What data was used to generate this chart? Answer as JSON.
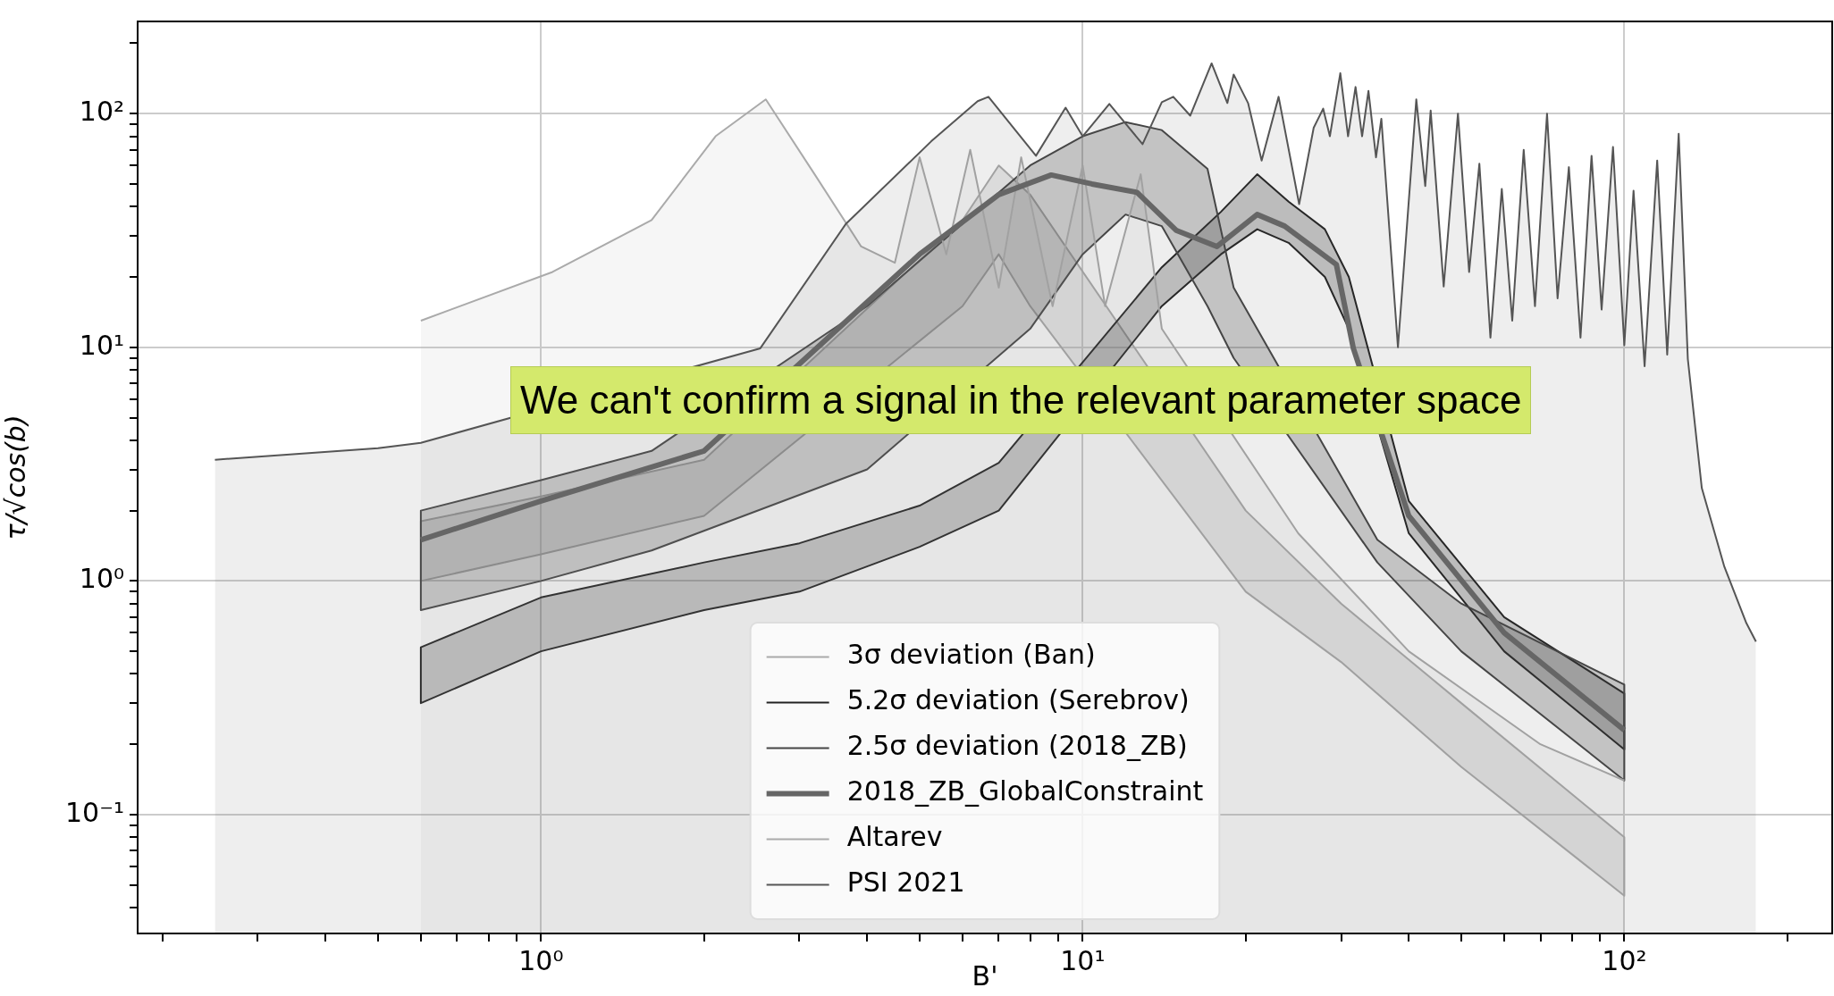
{
  "chart_data": {
    "type": "line",
    "xlabel": "B'",
    "ylabel": "τ/√cos(b)",
    "log": "xy",
    "grid": true,
    "legend": "bottom",
    "xlim": [
      0.18,
      242
    ],
    "ylim": [
      0.031,
      248
    ],
    "xticks": [
      {
        "value": 0.2,
        "label": null
      },
      {
        "value": 0.3,
        "label": null
      },
      {
        "value": 0.4,
        "label": null
      },
      {
        "value": 0.5,
        "label": null
      },
      {
        "value": 0.6,
        "label": null
      },
      {
        "value": 0.7,
        "label": null
      },
      {
        "value": 0.8,
        "label": null
      },
      {
        "value": 0.9,
        "label": null
      },
      {
        "value": 1,
        "label": "10⁰"
      },
      {
        "value": 2,
        "label": null
      },
      {
        "value": 3,
        "label": null
      },
      {
        "value": 4,
        "label": null
      },
      {
        "value": 5,
        "label": null
      },
      {
        "value": 6,
        "label": null
      },
      {
        "value": 7,
        "label": null
      },
      {
        "value": 8,
        "label": null
      },
      {
        "value": 9,
        "label": null
      },
      {
        "value": 10,
        "label": "10¹"
      },
      {
        "value": 20,
        "label": null
      },
      {
        "value": 30,
        "label": null
      },
      {
        "value": 40,
        "label": null
      },
      {
        "value": 50,
        "label": null
      },
      {
        "value": 60,
        "label": null
      },
      {
        "value": 70,
        "label": null
      },
      {
        "value": 80,
        "label": null
      },
      {
        "value": 90,
        "label": null
      },
      {
        "value": 100,
        "label": "10²"
      },
      {
        "value": 200,
        "label": null
      }
    ],
    "yticks": [
      {
        "value": 0.04,
        "label": null
      },
      {
        "value": 0.05,
        "label": null
      },
      {
        "value": 0.06,
        "label": null
      },
      {
        "value": 0.07,
        "label": null
      },
      {
        "value": 0.08,
        "label": null
      },
      {
        "value": 0.09,
        "label": null
      },
      {
        "value": 0.1,
        "label": "10⁻¹"
      },
      {
        "value": 0.2,
        "label": null
      },
      {
        "value": 0.3,
        "label": null
      },
      {
        "value": 0.4,
        "label": null
      },
      {
        "value": 0.5,
        "label": null
      },
      {
        "value": 0.6,
        "label": null
      },
      {
        "value": 0.7,
        "label": null
      },
      {
        "value": 0.8,
        "label": null
      },
      {
        "value": 0.9,
        "label": null
      },
      {
        "value": 1,
        "label": "10⁰"
      },
      {
        "value": 2,
        "label": null
      },
      {
        "value": 3,
        "label": null
      },
      {
        "value": 4,
        "label": null
      },
      {
        "value": 5,
        "label": null
      },
      {
        "value": 6,
        "label": null
      },
      {
        "value": 7,
        "label": null
      },
      {
        "value": 8,
        "label": null
      },
      {
        "value": 9,
        "label": null
      },
      {
        "value": 10,
        "label": "10¹"
      },
      {
        "value": 20,
        "label": null
      },
      {
        "value": 30,
        "label": null
      },
      {
        "value": 40,
        "label": null
      },
      {
        "value": 50,
        "label": null
      },
      {
        "value": 60,
        "label": null
      },
      {
        "value": 70,
        "label": null
      },
      {
        "value": 80,
        "label": null
      },
      {
        "value": 90,
        "label": null
      },
      {
        "value": 100,
        "label": "10²"
      },
      {
        "value": 200,
        "label": null
      }
    ],
    "series": [
      {
        "name": "3σ deviation (Ban)",
        "color": "#aaaaaa",
        "x": [
          0.6,
          1,
          2,
          3,
          4,
          5,
          6,
          7,
          8,
          10,
          14,
          20,
          30,
          50,
          100
        ],
        "values": [
          null,
          null,
          null,
          null,
          null,
          null,
          null,
          null,
          null,
          null,
          null,
          null,
          null,
          null,
          null
        ],
        "lower": [
          1.0,
          1.3,
          1.9,
          null,
          null,
          null,
          15,
          25,
          15,
          null,
          null,
          0.9,
          0.45,
          0.16,
          0.045
        ],
        "upper": [
          1.8,
          2.3,
          3.3,
          null,
          null,
          null,
          35,
          60,
          45,
          null,
          null,
          2,
          0.8,
          0.3,
          0.08
        ]
      },
      {
        "name": "5.2σ deviation (Serebrov)",
        "color": "#222222",
        "x": [
          0.6,
          1,
          2,
          3,
          5,
          7,
          9,
          11,
          14,
          18,
          21,
          24,
          28,
          31,
          33,
          40,
          60,
          100
        ],
        "values": [
          null,
          null,
          null,
          null,
          null,
          null,
          null,
          null,
          null,
          null,
          null,
          null,
          null,
          null,
          null,
          null,
          null,
          null
        ],
        "lower": [
          0.3,
          0.5,
          0.75,
          0.9,
          1.4,
          2,
          null,
          null,
          15,
          25,
          32,
          28,
          20,
          12,
          null,
          1.6,
          0.5,
          0.19
        ],
        "upper": [
          0.52,
          0.85,
          1.2,
          1.45,
          2.1,
          3.2,
          null,
          null,
          22,
          38,
          55,
          42,
          32,
          20,
          null,
          2.2,
          0.7,
          0.33
        ]
      },
      {
        "name": "2.5σ deviation (2018_ZB)",
        "color": "#444444",
        "x": [
          0.6,
          1,
          1.6,
          2.5,
          4,
          6,
          8,
          10,
          12,
          14,
          17,
          19,
          21,
          25,
          35,
          50,
          100
        ],
        "values": [
          null,
          null,
          null,
          null,
          null,
          null,
          null,
          null,
          null,
          null,
          null,
          null,
          null,
          null,
          null,
          null,
          null
        ],
        "lower": [
          0.75,
          1.0,
          1.35,
          null,
          3,
          null,
          12,
          25,
          37,
          33,
          15,
          9,
          null,
          null,
          1.2,
          0.5,
          0.14
        ],
        "upper": [
          2.0,
          2.7,
          3.6,
          null,
          15,
          null,
          60,
          80,
          92,
          85,
          58,
          18,
          null,
          null,
          1.5,
          0.8,
          0.36
        ]
      },
      {
        "name": "2018_ZB_GlobalConstraint",
        "color": "#666666",
        "x": [
          0.6,
          1,
          2,
          3,
          5,
          7,
          8.75,
          10.4,
          12.6,
          14.9,
          17.7,
          21,
          23.6,
          29.4,
          31.6,
          32.8,
          40,
          60,
          100
        ],
        "values": [
          1.5,
          2.2,
          3.6,
          null,
          25,
          45,
          54.6,
          50,
          46,
          31.6,
          27,
          37,
          33,
          22.6,
          9.9,
          null,
          1.9,
          0.6,
          0.23
        ]
      },
      {
        "name": "Altarev",
        "type": "area",
        "color": "#aaaaaa",
        "x": [
          0.6,
          1.05,
          1.6,
          2.1,
          2.6,
          3.2,
          3.9,
          4.5,
          5,
          5.6,
          6.2,
          7,
          7.7,
          8.8,
          10,
          11,
          12.8,
          14,
          17,
          25,
          40,
          70,
          100
        ],
        "values": [
          13,
          21,
          35,
          80,
          115,
          55,
          27,
          23,
          65,
          25,
          70,
          18,
          65,
          15,
          60,
          15,
          55,
          12,
          null,
          1.6,
          0.5,
          0.2,
          0.14
        ]
      },
      {
        "name": "PSI 2021",
        "type": "area",
        "color": "#555555",
        "x": [
          0.25,
          0.5,
          0.6,
          1,
          1.5,
          2.09,
          2.54,
          3.65,
          5.25,
          6.4,
          6.7,
          8.2,
          9.3,
          10,
          11.2,
          12.9,
          14,
          14.7,
          15.8,
          17.3,
          18.5,
          19,
          20.2,
          21.4,
          23,
          25.1,
          26.7,
          27.8,
          28.6,
          29.9,
          30.9,
          31.9,
          32.8,
          33.7,
          34.8,
          35.6,
          38.2,
          41.3,
          42.9,
          43.9,
          46.4,
          49.3,
          51.7,
          54,
          56.6,
          59.4,
          62.1,
          65.2,
          68.4,
          72,
          75.3,
          79,
          83,
          87,
          90.8,
          95.3,
          100,
          104,
          109,
          115,
          120,
          126,
          131,
          139,
          153,
          168,
          175
        ],
        "values": [
          3.3,
          3.7,
          3.9,
          null,
          null,
          null,
          9.9,
          33.6,
          76,
          113,
          118,
          66,
          106,
          80,
          110,
          74,
          112,
          118,
          98,
          164,
          111,
          147,
          111,
          63,
          118,
          41,
          87,
          105,
          80,
          149,
          80,
          130,
          80,
          125,
          65,
          95,
          10,
          115,
          49,
          103,
          18.2,
          100,
          21,
          61,
          11,
          47.6,
          13,
          70,
          15,
          100,
          16.2,
          59,
          11,
          66,
          14.5,
          72,
          10.2,
          46.8,
          8.3,
          63,
          9.3,
          82,
          8.9,
          2.5,
          1.15,
          0.66,
          0.55
        ]
      }
    ],
    "annotations": [
      "We can't confirm a signal in the relevant parameter space"
    ]
  }
}
